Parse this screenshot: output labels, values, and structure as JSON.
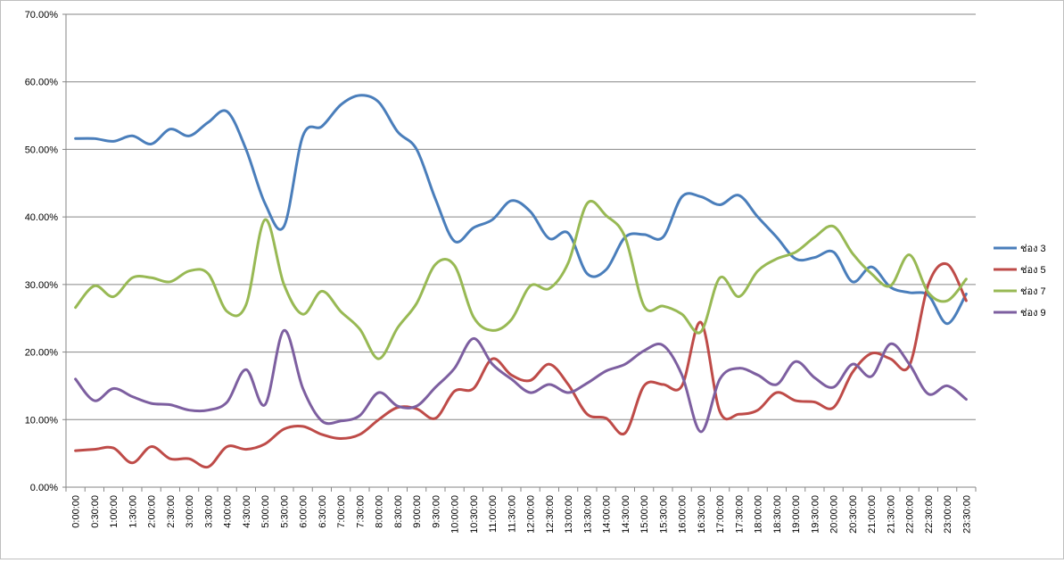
{
  "chart_data": {
    "type": "line",
    "title": "",
    "xlabel": "",
    "ylabel": "",
    "ylim": [
      0,
      70
    ],
    "y_ticks": [
      "0.00%",
      "10.00%",
      "20.00%",
      "30.00%",
      "40.00%",
      "50.00%",
      "60.00%",
      "70.00%"
    ],
    "y_tick_values": [
      0,
      10,
      20,
      30,
      40,
      50,
      60,
      70
    ],
    "grid": "horizontal",
    "smooth": true,
    "legend_position": "right",
    "categories": [
      "0:00:00",
      "0:30:00",
      "1:00:00",
      "1:30:00",
      "2:00:00",
      "2:30:00",
      "3:00:00",
      "3:30:00",
      "4:00:00",
      "4:30:00",
      "5:00:00",
      "5:30:00",
      "6:00:00",
      "6:30:00",
      "7:00:00",
      "7:30:00",
      "8:00:00",
      "8:30:00",
      "9:00:00",
      "9:30:00",
      "10:00:00",
      "10:30:00",
      "11:00:00",
      "11:30:00",
      "12:00:00",
      "12:30:00",
      "13:00:00",
      "13:30:00",
      "14:00:00",
      "14:30:00",
      "15:00:00",
      "15:30:00",
      "16:00:00",
      "16:30:00",
      "17:00:00",
      "17:30:00",
      "18:00:00",
      "18:30:00",
      "19:00:00",
      "19:30:00",
      "20:00:00",
      "20:30:00",
      "21:00:00",
      "21:30:00",
      "22:00:00",
      "22:30:00",
      "23:00:00",
      "23:30:00"
    ],
    "series": [
      {
        "name": "ช่อง 3",
        "color": "#4a7ebb",
        "values": [
          51.6,
          51.6,
          51.2,
          52.0,
          50.8,
          53.0,
          52.0,
          54.0,
          55.6,
          50.0,
          42.0,
          38.6,
          52.0,
          53.4,
          56.6,
          58.0,
          57.0,
          52.6,
          50.0,
          42.6,
          36.4,
          38.4,
          39.6,
          42.4,
          40.8,
          36.8,
          37.6,
          31.6,
          32.2,
          37.0,
          37.4,
          37.0,
          43.0,
          43.0,
          41.8,
          43.2,
          40.0,
          37.0,
          33.8,
          34.0,
          34.8,
          30.4,
          32.6,
          29.6,
          28.8,
          28.4,
          24.2,
          28.6
        ]
      },
      {
        "name": "ช่อง 5",
        "color": "#be4b48",
        "values": [
          5.4,
          5.6,
          5.8,
          3.6,
          6.0,
          4.2,
          4.2,
          3.0,
          6.0,
          5.6,
          6.4,
          8.6,
          9.0,
          7.8,
          7.2,
          7.8,
          10.0,
          11.8,
          11.6,
          10.2,
          14.2,
          14.6,
          19.0,
          16.6,
          15.8,
          18.2,
          15.2,
          10.8,
          10.2,
          8.0,
          15.0,
          15.2,
          15.0,
          24.4,
          11.2,
          10.8,
          11.4,
          14.0,
          12.8,
          12.6,
          11.8,
          17.0,
          19.8,
          19.0,
          18.0,
          30.0,
          33.0,
          27.6
        ]
      },
      {
        "name": "ช่อง 7",
        "color": "#98b954",
        "values": [
          26.6,
          29.8,
          28.2,
          31.0,
          31.0,
          30.4,
          32.0,
          31.6,
          26.0,
          27.0,
          39.6,
          30.0,
          25.6,
          29.0,
          26.0,
          23.4,
          19.0,
          23.6,
          27.2,
          33.0,
          32.8,
          25.2,
          23.2,
          24.8,
          29.8,
          29.4,
          33.2,
          42.0,
          40.2,
          37.0,
          26.8,
          26.8,
          25.6,
          23.0,
          31.0,
          28.2,
          32.0,
          33.8,
          34.8,
          37.0,
          38.6,
          34.6,
          31.6,
          29.8,
          34.4,
          28.8,
          27.6,
          30.8
        ]
      },
      {
        "name": "ช่อง 9",
        "color": "#7d5fa0",
        "values": [
          16.0,
          12.8,
          14.6,
          13.4,
          12.4,
          12.2,
          11.4,
          11.4,
          12.6,
          17.4,
          12.2,
          23.2,
          14.6,
          9.8,
          9.8,
          10.6,
          14.0,
          12.0,
          12.0,
          14.8,
          17.6,
          22.0,
          18.2,
          16.0,
          14.0,
          15.2,
          14.0,
          15.4,
          17.2,
          18.2,
          20.2,
          21.0,
          16.6,
          8.2,
          16.0,
          17.6,
          16.6,
          15.2,
          18.6,
          16.2,
          14.8,
          18.2,
          16.4,
          21.2,
          18.2,
          13.8,
          15.0,
          13.0
        ]
      }
    ]
  }
}
